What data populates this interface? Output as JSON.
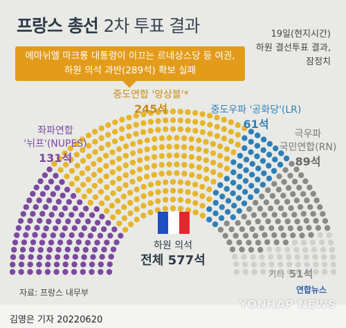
{
  "title": {
    "main": "프랑스 총선",
    "sub": "2차 투표 결과"
  },
  "note": [
    "19일(현지시간)",
    "하원 결선투표 결과,",
    "잠정치"
  ],
  "banner": {
    "line1": "에마뉘엘 마크롱 대통령이 이끄는 르네상스당 등 여권,",
    "line2": "하원 의석 과반(289석) 확보 실패"
  },
  "total": {
    "label": "하원 의석",
    "value": "전체 577석"
  },
  "flag_colors": [
    "#1f4fc2",
    "#ffffff",
    "#e3262d"
  ],
  "source": "자료: 프랑스 내무부",
  "logo": "연합뉴스",
  "watermark": "YONHAP NEWS",
  "credit": "김영은 기자  20220620",
  "chart_data": {
    "type": "parliament",
    "total": 577,
    "series": [
      {
        "name": "좌파연합 '뉘프'(NUPES)",
        "value": 131,
        "label": "131석",
        "color": "#7b4a9f"
      },
      {
        "name": "중도연합 '앙상블'*",
        "value": 245,
        "label": "245석",
        "color": "#e6b52d"
      },
      {
        "name": "중도우파 '공화당'(LR)",
        "value": 61,
        "label": "61석",
        "color": "#2f7fb7"
      },
      {
        "name": "극우파 국민연합(RN)",
        "value": 89,
        "label": "89석",
        "color": "#8a8a8a"
      },
      {
        "name": "기타",
        "value": 51,
        "label": "51석",
        "color": "#cfcfcf"
      }
    ]
  }
}
